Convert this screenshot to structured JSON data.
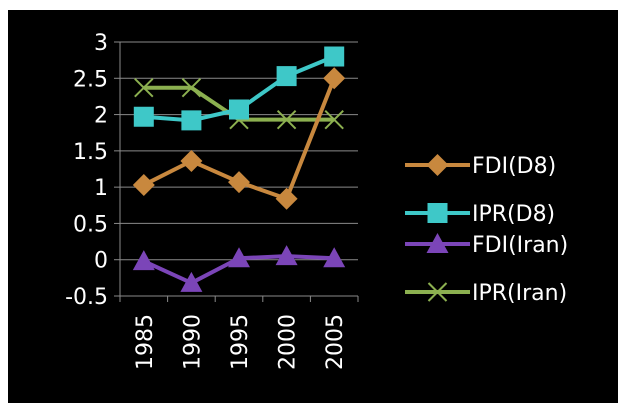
{
  "chart_data": {
    "type": "line",
    "title": "",
    "xlabel": "",
    "ylabel": "",
    "categories": [
      "1985",
      "1990",
      "1995",
      "2000",
      "2005"
    ],
    "ylim": [
      -0.5,
      3
    ],
    "yticks": [
      {
        "value": 3,
        "label": "3"
      },
      {
        "value": 2.5,
        "label": "2.5"
      },
      {
        "value": 2,
        "label": "2"
      },
      {
        "value": 1.5,
        "label": "1.5"
      },
      {
        "value": 1,
        "label": "1"
      },
      {
        "value": 0.5,
        "label": "0.5"
      },
      {
        "value": 0,
        "label": "0"
      },
      {
        "value": -0.5,
        "label": "-0.5"
      }
    ],
    "grid": true,
    "legend_position": "right",
    "background": "#000000",
    "series": [
      {
        "name": "FDI(D8)",
        "color": "#c8883e",
        "marker": "diamond",
        "values": [
          1.03,
          1.36,
          1.07,
          0.84,
          2.5
        ]
      },
      {
        "name": "IPR(D8)",
        "color": "#3ec8c8",
        "marker": "square",
        "values": [
          1.97,
          1.92,
          2.07,
          2.53,
          2.8
        ]
      },
      {
        "name": "FDI(Iran)",
        "color": "#7b45b8",
        "marker": "triangle",
        "values": [
          -0.02,
          -0.32,
          0.02,
          0.05,
          0.02
        ]
      },
      {
        "name": "IPR(Iran)",
        "color": "#8cb050",
        "marker": "x",
        "values": [
          2.37,
          2.37,
          1.93,
          1.93,
          1.93
        ]
      }
    ]
  }
}
